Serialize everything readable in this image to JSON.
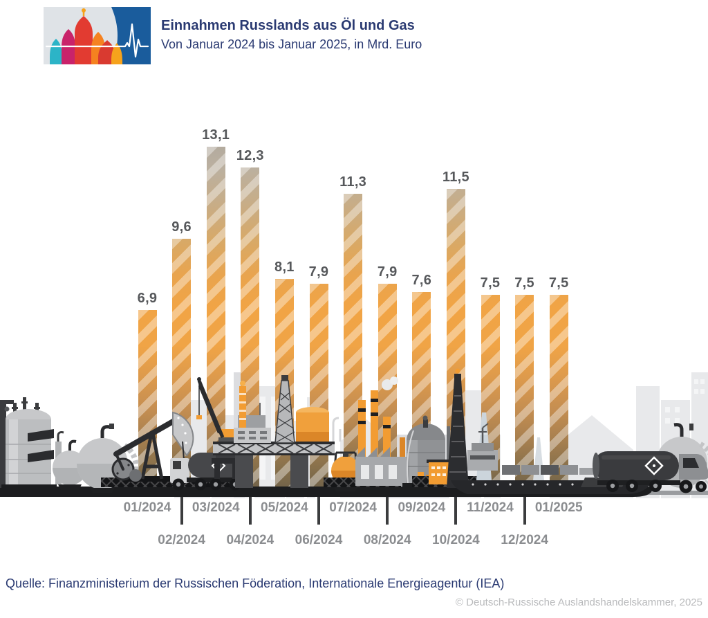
{
  "header": {
    "title": "Einnahmen Russlands aus Öl und Gas",
    "subtitle": "Von Januar 2024 bis Januar 2025, in Mrd. Euro"
  },
  "chart_data": {
    "type": "bar",
    "title": "Einnahmen Russlands aus Öl und Gas",
    "subtitle": "Von Januar 2024 bis Januar 2025, in Mrd. Euro",
    "unit": "Mrd. Euro",
    "categories": [
      "01/2024",
      "02/2024",
      "03/2024",
      "04/2024",
      "05/2024",
      "06/2024",
      "07/2024",
      "08/2024",
      "09/2024",
      "10/2024",
      "11/2024",
      "12/2024",
      "01/2025"
    ],
    "values": [
      6.9,
      9.6,
      13.1,
      12.3,
      8.1,
      7.9,
      11.3,
      7.9,
      7.6,
      11.5,
      7.5,
      7.5,
      7.5
    ],
    "value_labels": [
      "6,9",
      "9,6",
      "13,1",
      "12,3",
      "8,1",
      "7,9",
      "11,3",
      "7,9",
      "7,6",
      "11,5",
      "7,5",
      "7,5",
      "7,5"
    ],
    "ylim": [
      0,
      14
    ],
    "grid": false,
    "legend": false,
    "bar_style": "diagonal stripes, vertical gradient gray-orange-brown"
  },
  "footer": {
    "source": "Quelle: Finanzministerium der Russischen Föderation, Internationale Energieagentur (IEA)",
    "copyright": "© Deutsch-Russische Auslandshandelskammer, 2025"
  },
  "colors": {
    "accent_navy": "#2a3a72",
    "bar_orange": "#f1a445",
    "bar_gray_top": "#b2aa9e",
    "bar_brown_bottom": "#6d6049",
    "value_label": "#56585b",
    "month_label": "#8b8d90",
    "tick": "#3b3c3e",
    "logo_blue": "#1a5c9c",
    "copyright": "#b9babc",
    "illustration_orange": "#f29c32"
  }
}
